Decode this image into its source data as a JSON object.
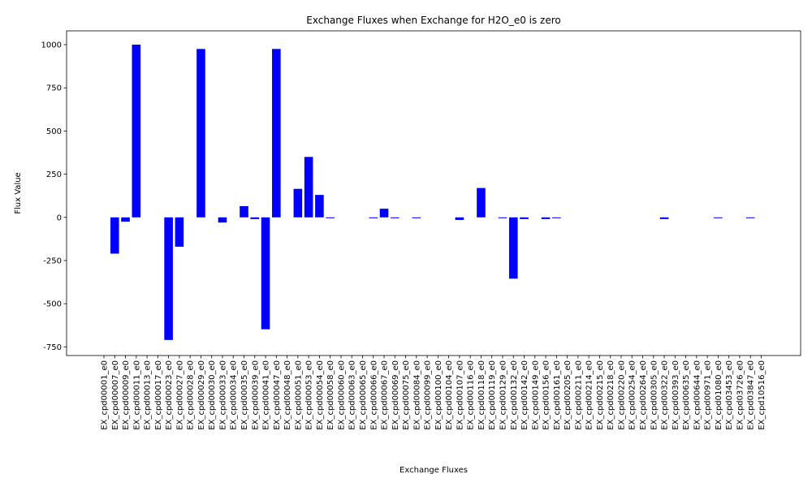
{
  "chart_data": {
    "type": "bar",
    "title": "Exchange Fluxes when Exchange for H2O_e0 is zero",
    "xlabel": "Exchange Fluxes",
    "ylabel": "Flux Value",
    "ylim": [
      -800,
      1080
    ],
    "yticks": [
      -750,
      -500,
      -250,
      0,
      250,
      500,
      750,
      1000
    ],
    "grid": false,
    "bar_color": "#0000ff",
    "categories": [
      "EX_cpd00001_e0",
      "EX_cpd00007_e0",
      "EX_cpd00009_e0",
      "EX_cpd00011_e0",
      "EX_cpd00013_e0",
      "EX_cpd00017_e0",
      "EX_cpd00023_e0",
      "EX_cpd00027_e0",
      "EX_cpd00028_e0",
      "EX_cpd00029_e0",
      "EX_cpd00030_e0",
      "EX_cpd00033_e0",
      "EX_cpd00034_e0",
      "EX_cpd00035_e0",
      "EX_cpd00039_e0",
      "EX_cpd00041_e0",
      "EX_cpd00047_e0",
      "EX_cpd00048_e0",
      "EX_cpd00051_e0",
      "EX_cpd00053_e0",
      "EX_cpd00054_e0",
      "EX_cpd00058_e0",
      "EX_cpd00060_e0",
      "EX_cpd00063_e0",
      "EX_cpd00065_e0",
      "EX_cpd00066_e0",
      "EX_cpd00067_e0",
      "EX_cpd00069_e0",
      "EX_cpd00075_e0",
      "EX_cpd00084_e0",
      "EX_cpd00099_e0",
      "EX_cpd00100_e0",
      "EX_cpd00104_e0",
      "EX_cpd00107_e0",
      "EX_cpd00116_e0",
      "EX_cpd00118_e0",
      "EX_cpd00119_e0",
      "EX_cpd00129_e0",
      "EX_cpd00132_e0",
      "EX_cpd00142_e0",
      "EX_cpd00149_e0",
      "EX_cpd00156_e0",
      "EX_cpd00161_e0",
      "EX_cpd00205_e0",
      "EX_cpd00211_e0",
      "EX_cpd00214_e0",
      "EX_cpd00215_e0",
      "EX_cpd00218_e0",
      "EX_cpd00220_e0",
      "EX_cpd00254_e0",
      "EX_cpd00264_e0",
      "EX_cpd00305_e0",
      "EX_cpd00322_e0",
      "EX_cpd00393_e0",
      "EX_cpd00635_e0",
      "EX_cpd00644_e0",
      "EX_cpd00971_e0",
      "EX_cpd01080_e0",
      "EX_cpd03453_e0",
      "EX_cpd03726_e0",
      "EX_cpd03847_e0",
      "EX_cpd10516_e0"
    ],
    "values": [
      0,
      -210,
      -25,
      1000,
      0,
      0,
      -710,
      -170,
      0,
      975,
      0,
      -30,
      0,
      65,
      -10,
      -648,
      975,
      0,
      165,
      350,
      130,
      -5,
      0,
      0,
      0,
      -5,
      50,
      -5,
      0,
      -5,
      0,
      0,
      0,
      -15,
      0,
      170,
      0,
      -5,
      -355,
      -10,
      0,
      -10,
      -5,
      0,
      0,
      0,
      0,
      0,
      0,
      0,
      0,
      0,
      -10,
      0,
      0,
      0,
      0,
      -5,
      0,
      0,
      -5,
      0
    ]
  }
}
